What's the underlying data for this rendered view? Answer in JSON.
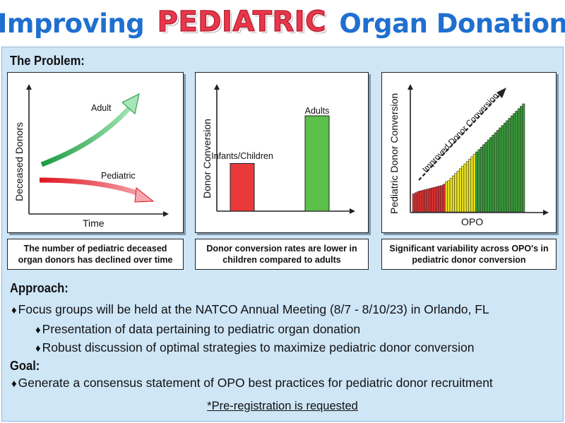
{
  "header": {
    "title_prefix": "Improving",
    "title_highlight": "PEDIATRIC",
    "title_suffix": "Organ Donation"
  },
  "problem": {
    "heading": "The Problem:",
    "chart1": {
      "ylabel": "Deceased Donors",
      "xlabel": "Time",
      "series": [
        {
          "name": "Adult",
          "trend": "increasing",
          "color": "#22a04a"
        },
        {
          "name": "Pediatric",
          "trend": "decreasing",
          "color": "#e02a32"
        }
      ],
      "caption": "The number of pediatric deceased organ donors has declined over time"
    },
    "chart2": {
      "ylabel": "Donor Conversion",
      "categories": [
        "Infants/Children",
        "Adults"
      ],
      "values": [
        0.45,
        0.9
      ],
      "colors": [
        "#e83a3a",
        "#5cc04a"
      ],
      "caption": "Donor conversion rates are lower in children compared to adults"
    },
    "chart3": {
      "ylabel": "Pediatric Donor Conversion",
      "xlabel": "OPO",
      "annotation": "Improved Donor Conversion",
      "values": [
        0.15,
        0.16,
        0.17,
        0.175,
        0.18,
        0.185,
        0.19,
        0.195,
        0.2,
        0.205,
        0.21,
        0.215,
        0.22,
        0.23,
        0.25,
        0.26,
        0.28,
        0.3,
        0.32,
        0.34,
        0.36,
        0.38,
        0.4,
        0.42,
        0.44,
        0.46,
        0.48,
        0.5,
        0.52,
        0.54,
        0.56,
        0.58,
        0.6,
        0.62,
        0.64,
        0.66,
        0.68,
        0.7,
        0.72,
        0.74,
        0.76,
        0.78,
        0.8,
        0.82,
        0.84,
        0.86,
        0.88,
        0.9
      ],
      "colors": {
        "low": "#d93030",
        "mid": "#e8e020",
        "high": "#3a9a3a"
      },
      "caption": "Significant variability across OPO's in pediatric donor conversion"
    }
  },
  "approach": {
    "heading": "Approach:",
    "bullets": [
      "Focus groups will be held at the NATCO Annual Meeting (8/7 - 8/10/23) in Orlando, FL",
      "Presentation of data pertaining to pediatric organ donation",
      "Robust discussion of optimal strategies to maximize pediatric donor conversion"
    ]
  },
  "goal": {
    "heading": "Goal:",
    "bullets": [
      "Generate a consensus statement of OPO best practices for pediatric donor recruitment"
    ]
  },
  "note": "*Pre-registration is requested",
  "bullet_symbol": "♦"
}
